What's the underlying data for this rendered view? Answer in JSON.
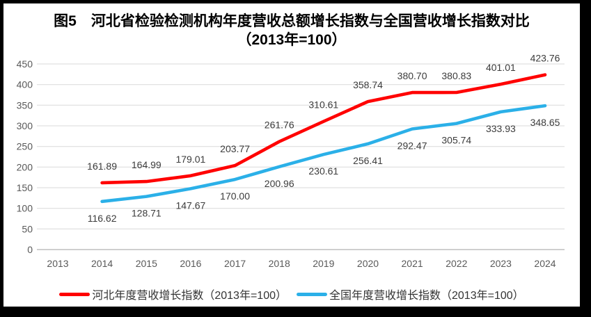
{
  "title_line1": "图5　河北省检验检测机构年度营收总额增长指数与全国营收增长指数对比",
  "title_line2": "（2013年=100）",
  "colors": {
    "hebei_line": "#FF0000",
    "national_line": "#2BB0E8",
    "gridline": "#D9D9D9",
    "axis_line": "#BFBFBF",
    "tick_label": "#595959",
    "data_label": "#3B3B3B",
    "frame_border": "#000000"
  },
  "chart_data": {
    "type": "line",
    "x": [
      "2013",
      "2014",
      "2015",
      "2016",
      "2017",
      "2018",
      "2019",
      "2020",
      "2021",
      "2022",
      "2023",
      "2024"
    ],
    "series": [
      {
        "name": "河北年度营收增长指数（2013年=100）",
        "color": "#FF0000",
        "label_position": "above",
        "values": [
          null,
          "161.89",
          "164.99",
          "179.01",
          "203.77",
          "261.76",
          "310.61",
          "358.74",
          "380.70",
          "380.83",
          "401.01",
          "423.76"
        ]
      },
      {
        "name": "全国年度营收增长指数（2013年=100）",
        "color": "#2BB0E8",
        "label_position": "below",
        "values": [
          null,
          "116.62",
          "128.71",
          "147.67",
          "170.00",
          "200.96",
          "230.61",
          "256.41",
          "292.47",
          "305.74",
          "333.93",
          "348.65"
        ]
      }
    ],
    "title": "图5　河北省检验检测机构年度营收总额增长指数与全国营收增长指数对比（2013年=100）",
    "xlabel": "",
    "ylabel": "",
    "ylim": [
      0,
      450
    ],
    "ytick_step": 50,
    "yticks": [
      "0",
      "50",
      "100",
      "150",
      "200",
      "250",
      "300",
      "350",
      "400",
      "450"
    ],
    "grid": true,
    "legend_position": "bottom"
  }
}
